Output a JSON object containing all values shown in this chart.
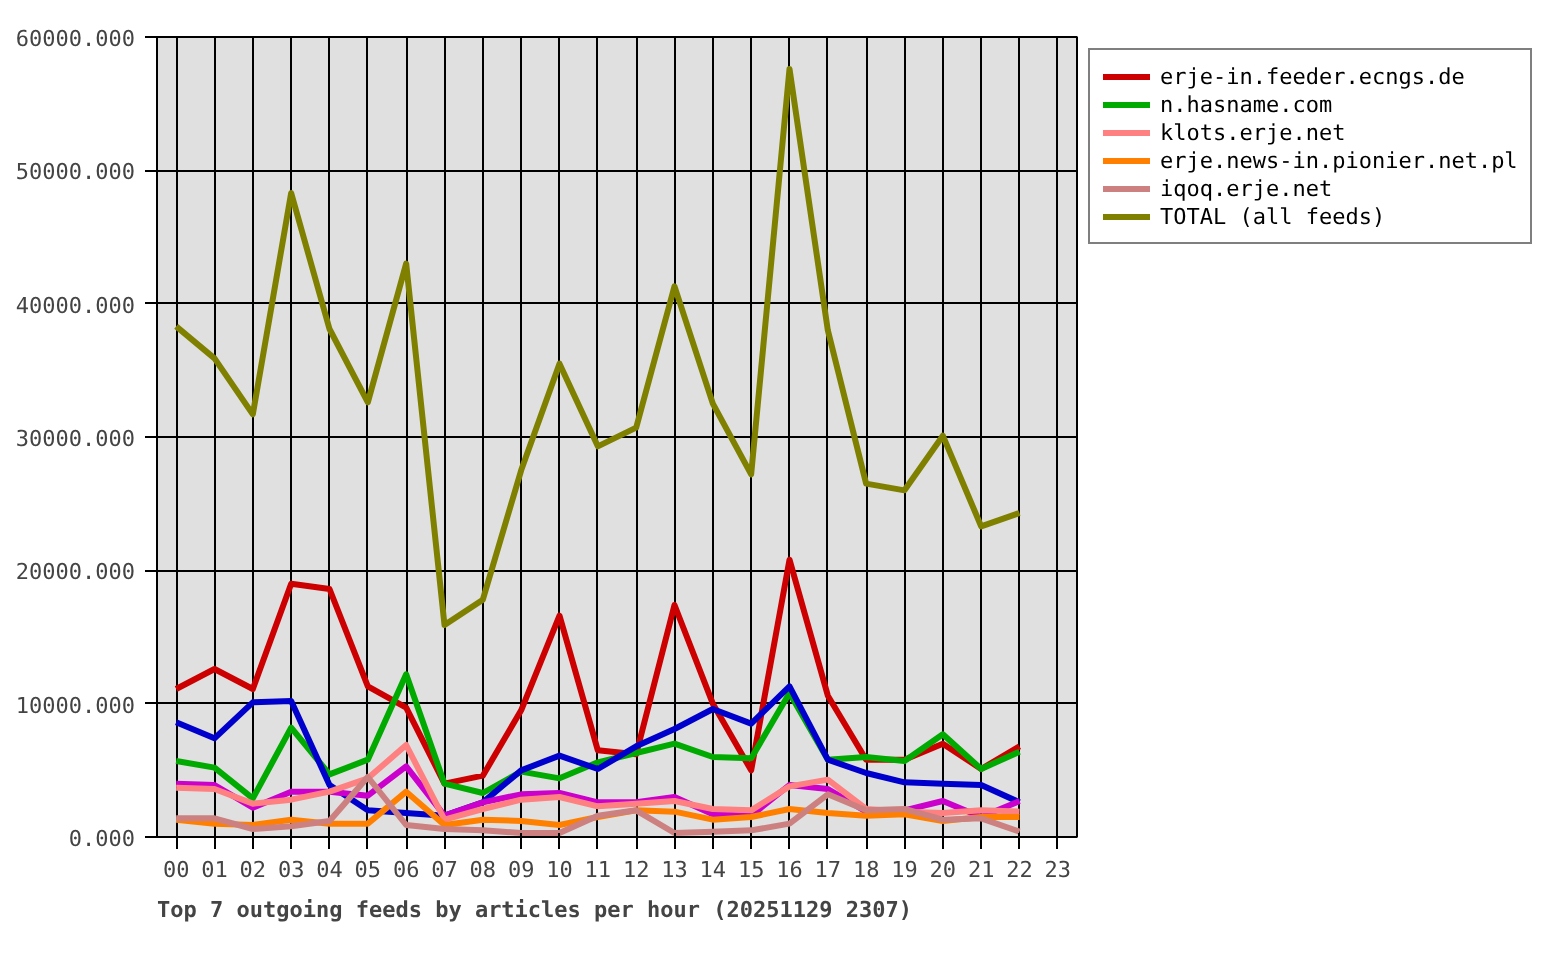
{
  "chart_data": {
    "type": "line",
    "title": "Top 7 outgoing feeds by articles per hour (20251129 2307)",
    "categories": [
      "00",
      "01",
      "02",
      "03",
      "04",
      "05",
      "06",
      "07",
      "08",
      "09",
      "10",
      "11",
      "12",
      "13",
      "14",
      "15",
      "16",
      "17",
      "18",
      "19",
      "20",
      "21",
      "22",
      "23"
    ],
    "ylim": [
      0,
      60000
    ],
    "yticks": [
      {
        "value": 0,
        "label": "0.000"
      },
      {
        "value": 10000,
        "label": "10000.000"
      },
      {
        "value": 20000,
        "label": "20000.000"
      },
      {
        "value": 30000,
        "label": "30000.000"
      },
      {
        "value": 40000,
        "label": "40000.000"
      },
      {
        "value": 50000,
        "label": "50000.000"
      },
      {
        "value": 60000,
        "label": "60000.000"
      }
    ],
    "grid": true,
    "legend": "top right",
    "series": [
      {
        "name": "erje-in.feeder.ecngs.de",
        "color": "#cc0000",
        "values": [
          11100,
          12600,
          11100,
          19000,
          18600,
          11300,
          9700,
          4000,
          4600,
          9500,
          16600,
          6500,
          6200,
          17400,
          10000,
          5000,
          20800,
          10600,
          5800,
          5800,
          7000,
          5100,
          6800,
          null
        ]
      },
      {
        "name": "n.hasname.com",
        "color": "#00aa00",
        "values": [
          5700,
          5200,
          2900,
          8200,
          4700,
          5800,
          12200,
          4000,
          3300,
          4900,
          4400,
          5600,
          6300,
          7000,
          6000,
          5900,
          10800,
          5800,
          6000,
          5700,
          7700,
          5100,
          6400,
          null
        ]
      },
      {
        "color": "#0000cc",
        "values": [
          8600,
          7400,
          10100,
          10200,
          3900,
          2000,
          1800,
          1600,
          2600,
          5000,
          6100,
          5100,
          6800,
          8100,
          9600,
          8500,
          11300,
          5800,
          4800,
          4100,
          4000,
          3900,
          2600,
          null
        ]
      },
      {
        "color": "#cc00cc",
        "values": [
          4000,
          3900,
          2200,
          3400,
          3400,
          3100,
          5300,
          1600,
          2600,
          3200,
          3300,
          2600,
          2600,
          3000,
          1700,
          1600,
          3900,
          3600,
          1900,
          2000,
          2700,
          1500,
          2700,
          null
        ]
      },
      {
        "name": "klots.erje.net",
        "color": "#ff8080",
        "values": [
          3700,
          3600,
          2500,
          2800,
          3400,
          4400,
          6900,
          1300,
          2100,
          2800,
          3000,
          2300,
          2500,
          2700,
          2100,
          2000,
          3800,
          4300,
          2100,
          1900,
          1800,
          2000,
          1900,
          null
        ]
      },
      {
        "name": "erje.news-in.pionier.net.pl",
        "color": "#ff8000",
        "values": [
          1300,
          1000,
          900,
          1300,
          1000,
          1000,
          3400,
          900,
          1300,
          1200,
          900,
          1500,
          2000,
          1900,
          1300,
          1500,
          2100,
          1800,
          1600,
          1700,
          1200,
          1500,
          1500,
          null
        ]
      },
      {
        "name": "iqoq.erje.net",
        "color": "#cc8080",
        "values": [
          1400,
          1400,
          600,
          800,
          1200,
          4500,
          900,
          600,
          500,
          300,
          300,
          1600,
          2000,
          300,
          400,
          500,
          1000,
          3200,
          2000,
          2100,
          1300,
          1400,
          400,
          null
        ]
      },
      {
        "name": "TOTAL (all feeds)",
        "color": "#808000",
        "values": [
          38300,
          35900,
          31700,
          48300,
          38100,
          32600,
          43000,
          15900,
          17800,
          27500,
          35500,
          29300,
          30700,
          41300,
          32500,
          27200,
          57600,
          38000,
          26500,
          26000,
          30100,
          23300,
          24300,
          null
        ]
      }
    ]
  }
}
